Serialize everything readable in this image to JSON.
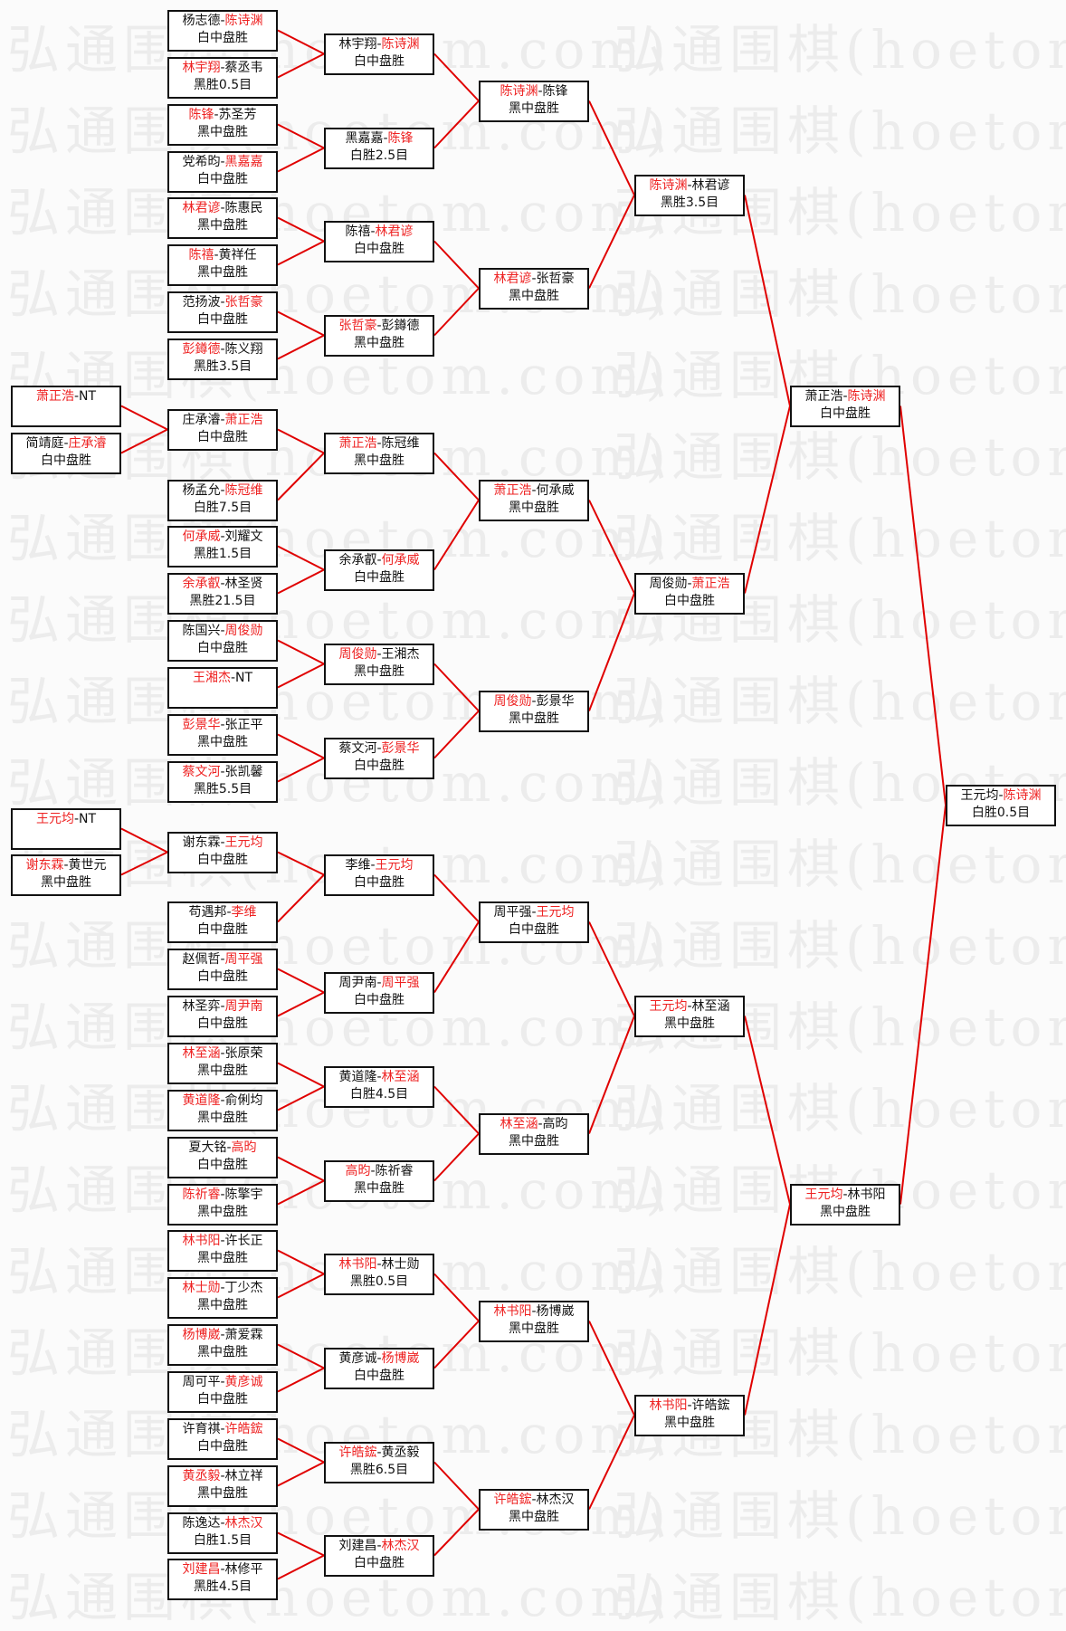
{
  "watermark": "弘通围棋(hoetom.com)",
  "colors": {
    "winner": "#ee2222",
    "line": "#e00000",
    "border": "#111111"
  },
  "rounds": [
    {
      "matches": [
        {
          "p1": "萧正浩",
          "p2": "NT",
          "winner": 1,
          "result": ""
        },
        {
          "p1": "简靖庭",
          "p2": "庄承濬",
          "winner": 2,
          "result": "白中盘胜"
        },
        {
          "p1": "王元均",
          "p2": "NT",
          "winner": 1,
          "result": ""
        },
        {
          "p1": "谢东霖",
          "p2": "黄世元",
          "winner": 1,
          "result": "黑中盘胜"
        }
      ]
    },
    {
      "matches": [
        {
          "p1": "杨志德",
          "p2": "陈诗渊",
          "winner": 2,
          "result": "白中盘胜"
        },
        {
          "p1": "林宇翔",
          "p2": "蔡丞韦",
          "winner": 1,
          "result": "黑胜0.5目"
        },
        {
          "p1": "陈锋",
          "p2": "苏圣芳",
          "winner": 1,
          "result": "黑中盘胜"
        },
        {
          "p1": "党希昀",
          "p2": "黑嘉嘉",
          "winner": 2,
          "result": "白中盘胜"
        },
        {
          "p1": "林君谚",
          "p2": "陈惠民",
          "winner": 1,
          "result": "黑中盘胜"
        },
        {
          "p1": "陈禧",
          "p2": "黄祥任",
          "winner": 1,
          "result": "黑中盘胜"
        },
        {
          "p1": "范扬波",
          "p2": "张哲豪",
          "winner": 2,
          "result": "白中盘胜"
        },
        {
          "p1": "彭鐏德",
          "p2": "陈义翔",
          "winner": 1,
          "result": "黑胜3.5目"
        },
        {
          "p1": "庄承濬",
          "p2": "萧正浩",
          "winner": 2,
          "result": "白中盘胜"
        },
        {
          "p1": "杨孟允",
          "p2": "陈冠维",
          "winner": 2,
          "result": "白胜7.5目"
        },
        {
          "p1": "何承威",
          "p2": "刘耀文",
          "winner": 1,
          "result": "黑胜1.5目"
        },
        {
          "p1": "余承叡",
          "p2": "林圣贤",
          "winner": 1,
          "result": "黑胜21.5目"
        },
        {
          "p1": "陈国兴",
          "p2": "周俊勋",
          "winner": 2,
          "result": "白中盘胜"
        },
        {
          "p1": "王湘杰",
          "p2": "NT",
          "winner": 1,
          "result": ""
        },
        {
          "p1": "彭景华",
          "p2": "张正平",
          "winner": 1,
          "result": "黑中盘胜"
        },
        {
          "p1": "蔡文河",
          "p2": "张凯馨",
          "winner": 1,
          "result": "黑胜5.5目"
        },
        {
          "p1": "谢东霖",
          "p2": "王元均",
          "winner": 2,
          "result": "白中盘胜"
        },
        {
          "p1": "苟遇邦",
          "p2": "李维",
          "winner": 2,
          "result": "白中盘胜"
        },
        {
          "p1": "赵佩哲",
          "p2": "周平强",
          "winner": 2,
          "result": "白中盘胜"
        },
        {
          "p1": "林圣弈",
          "p2": "周尹南",
          "winner": 2,
          "result": "白中盘胜"
        },
        {
          "p1": "林至涵",
          "p2": "张原荣",
          "winner": 1,
          "result": "黑中盘胜"
        },
        {
          "p1": "黄道隆",
          "p2": "俞俐均",
          "winner": 1,
          "result": "黑中盘胜"
        },
        {
          "p1": "夏大铭",
          "p2": "高昀",
          "winner": 2,
          "result": "白中盘胜"
        },
        {
          "p1": "陈祈睿",
          "p2": "陈擎宇",
          "winner": 1,
          "result": "黑中盘胜"
        },
        {
          "p1": "林书阳",
          "p2": "许长正",
          "winner": 1,
          "result": "黑中盘胜"
        },
        {
          "p1": "林士勋",
          "p2": "丁少杰",
          "winner": 1,
          "result": "黑中盘胜"
        },
        {
          "p1": "杨博崴",
          "p2": "萧爱霖",
          "winner": 1,
          "result": "黑中盘胜"
        },
        {
          "p1": "周可平",
          "p2": "黄彦诚",
          "winner": 2,
          "result": "白中盘胜"
        },
        {
          "p1": "许育祺",
          "p2": "许皓鋐",
          "winner": 2,
          "result": "白中盘胜"
        },
        {
          "p1": "黄丞毅",
          "p2": "林立祥",
          "winner": 1,
          "result": "黑中盘胜"
        },
        {
          "p1": "陈逸达",
          "p2": "林杰汉",
          "winner": 2,
          "result": "白胜1.5目"
        },
        {
          "p1": "刘建昌",
          "p2": "林修平",
          "winner": 1,
          "result": "黑胜4.5目"
        }
      ]
    },
    {
      "matches": [
        {
          "p1": "林宇翔",
          "p2": "陈诗渊",
          "winner": 2,
          "result": "白中盘胜"
        },
        {
          "p1": "黑嘉嘉",
          "p2": "陈锋",
          "winner": 2,
          "result": "白胜2.5目"
        },
        {
          "p1": "陈禧",
          "p2": "林君谚",
          "winner": 2,
          "result": "白中盘胜"
        },
        {
          "p1": "张哲豪",
          "p2": "彭鐏德",
          "winner": 1,
          "result": "黑中盘胜"
        },
        {
          "p1": "萧正浩",
          "p2": "陈冠维",
          "winner": 1,
          "result": "黑中盘胜"
        },
        {
          "p1": "余承叡",
          "p2": "何承威",
          "winner": 2,
          "result": "白中盘胜"
        },
        {
          "p1": "周俊勋",
          "p2": "王湘杰",
          "winner": 1,
          "result": "黑中盘胜"
        },
        {
          "p1": "蔡文河",
          "p2": "彭景华",
          "winner": 2,
          "result": "白中盘胜"
        },
        {
          "p1": "李维",
          "p2": "王元均",
          "winner": 2,
          "result": "白中盘胜"
        },
        {
          "p1": "周尹南",
          "p2": "周平强",
          "winner": 2,
          "result": "白中盘胜"
        },
        {
          "p1": "黄道隆",
          "p2": "林至涵",
          "winner": 2,
          "result": "白胜4.5目"
        },
        {
          "p1": "高昀",
          "p2": "陈祈睿",
          "winner": 1,
          "result": "黑中盘胜"
        },
        {
          "p1": "林书阳",
          "p2": "林士勋",
          "winner": 1,
          "result": "黑胜0.5目"
        },
        {
          "p1": "黄彦诚",
          "p2": "杨博崴",
          "winner": 2,
          "result": "白中盘胜"
        },
        {
          "p1": "许皓鋐",
          "p2": "黄丞毅",
          "winner": 1,
          "result": "黑胜6.5目"
        },
        {
          "p1": "刘建昌",
          "p2": "林杰汉",
          "winner": 2,
          "result": "白中盘胜"
        }
      ]
    },
    {
      "matches": [
        {
          "p1": "陈诗渊",
          "p2": "陈锋",
          "winner": 1,
          "result": "黑中盘胜"
        },
        {
          "p1": "林君谚",
          "p2": "张哲豪",
          "winner": 1,
          "result": "黑中盘胜"
        },
        {
          "p1": "萧正浩",
          "p2": "何承威",
          "winner": 1,
          "result": "黑中盘胜"
        },
        {
          "p1": "周俊勋",
          "p2": "彭景华",
          "winner": 1,
          "result": "黑中盘胜"
        },
        {
          "p1": "周平强",
          "p2": "王元均",
          "winner": 2,
          "result": "白中盘胜"
        },
        {
          "p1": "林至涵",
          "p2": "高昀",
          "winner": 1,
          "result": "黑中盘胜"
        },
        {
          "p1": "林书阳",
          "p2": "杨博崴",
          "winner": 1,
          "result": "黑中盘胜"
        },
        {
          "p1": "许皓鋐",
          "p2": "林杰汉",
          "winner": 1,
          "result": "黑中盘胜"
        }
      ]
    },
    {
      "matches": [
        {
          "p1": "陈诗渊",
          "p2": "林君谚",
          "winner": 1,
          "result": "黑胜3.5目"
        },
        {
          "p1": "周俊勋",
          "p2": "萧正浩",
          "winner": 2,
          "result": "白中盘胜"
        },
        {
          "p1": "王元均",
          "p2": "林至涵",
          "winner": 1,
          "result": "黑中盘胜"
        },
        {
          "p1": "林书阳",
          "p2": "许皓鋐",
          "winner": 1,
          "result": "黑中盘胜"
        }
      ]
    },
    {
      "matches": [
        {
          "p1": "萧正浩",
          "p2": "陈诗渊",
          "winner": 2,
          "result": "白中盘胜"
        },
        {
          "p1": "王元均",
          "p2": "林书阳",
          "winner": 1,
          "result": "黑中盘胜"
        }
      ]
    },
    {
      "matches": [
        {
          "p1": "王元均",
          "p2": "陈诗渊",
          "winner": 2,
          "result": "白胜0.5目"
        }
      ]
    }
  ]
}
